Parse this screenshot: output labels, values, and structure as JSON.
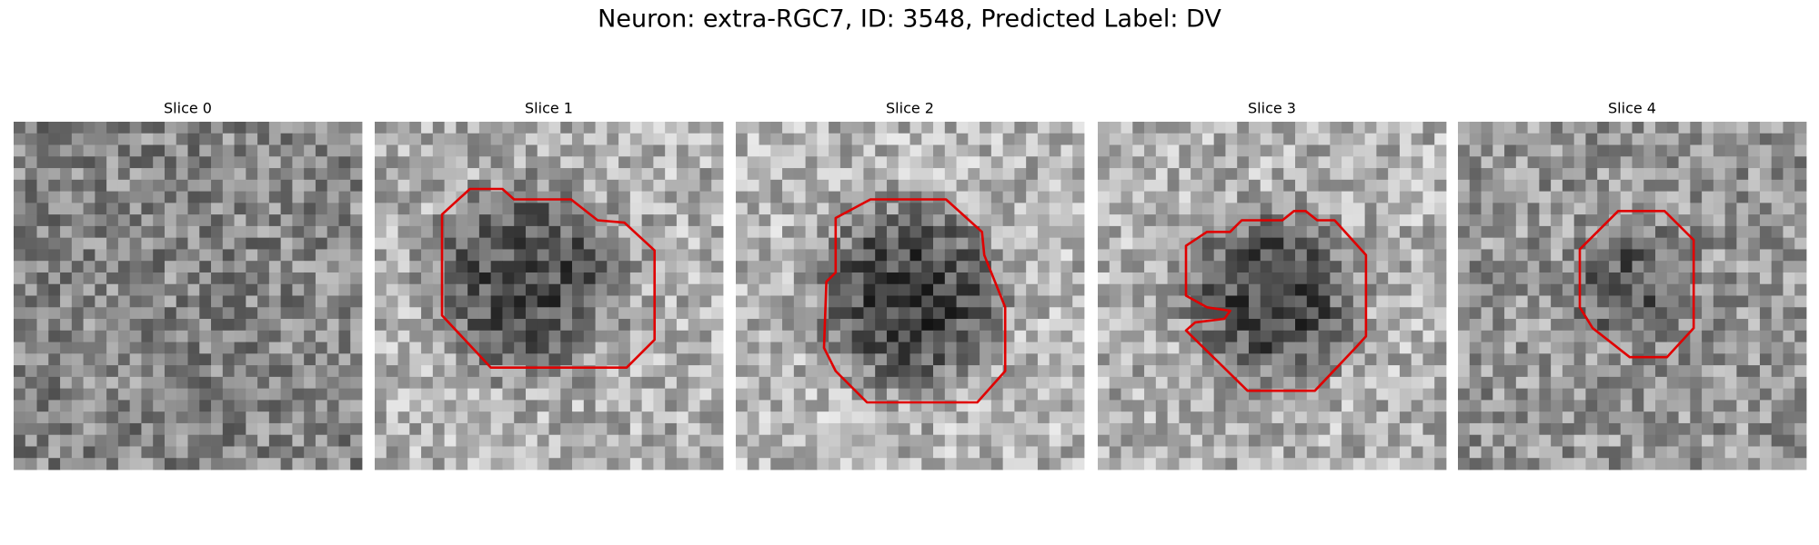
{
  "title": "Neuron: extra-RGC7, ID: 3548, Predicted Label: DV",
  "panels": [
    {
      "title": "Slice 0"
    },
    {
      "title": "Slice 1"
    },
    {
      "title": "Slice 2"
    },
    {
      "title": "Slice 3"
    },
    {
      "title": "Slice 4"
    }
  ]
}
